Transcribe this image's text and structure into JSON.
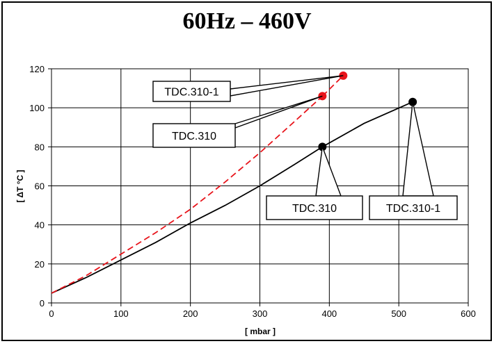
{
  "chart_data": {
    "type": "line",
    "title": "60Hz – 460V",
    "xlabel": "[ mbar ]",
    "ylabel": "[ ΔT °C ]",
    "xlim": [
      0,
      600
    ],
    "ylim": [
      0,
      120
    ],
    "xticks": [
      0,
      100,
      200,
      300,
      400,
      500,
      600
    ],
    "yticks": [
      0,
      20,
      40,
      60,
      80,
      100,
      120
    ],
    "grid": true,
    "series": [
      {
        "color": "#000000",
        "dash": "solid",
        "x": [
          0,
          50,
          100,
          150,
          200,
          250,
          300,
          350,
          390
        ],
        "y": [
          5,
          13,
          22,
          31,
          41,
          50,
          60,
          71,
          80
        ],
        "endpoint": {
          "x": 390,
          "y": 80
        }
      },
      {
        "color": "#000000",
        "dash": "solid",
        "x": [
          390,
          450,
          520
        ],
        "y": [
          80,
          92,
          103
        ],
        "endpoint": {
          "x": 520,
          "y": 103
        }
      },
      {
        "color": "#e8141b",
        "dash": "dashed",
        "x": [
          0,
          50,
          100,
          150,
          200,
          250,
          300,
          350,
          390
        ],
        "y": [
          5,
          14,
          25,
          36,
          48,
          62,
          77,
          93,
          106
        ],
        "endpoint": {
          "x": 390,
          "y": 106
        }
      },
      {
        "color": "#e8141b",
        "dash": "dashed",
        "x": [
          390,
          420
        ],
        "y": [
          106,
          116.5
        ],
        "endpoint": {
          "x": 420,
          "y": 116.5
        }
      }
    ],
    "annotations": [
      {
        "text": "TDC.310-1",
        "target": {
          "x": 420,
          "y": 116.5
        }
      },
      {
        "text": "TDC.310",
        "target": {
          "x": 390,
          "y": 106
        }
      },
      {
        "text": "TDC.310",
        "target": {
          "x": 390,
          "y": 80
        }
      },
      {
        "text": "TDC.310-1",
        "target": {
          "x": 520,
          "y": 103
        }
      }
    ]
  }
}
